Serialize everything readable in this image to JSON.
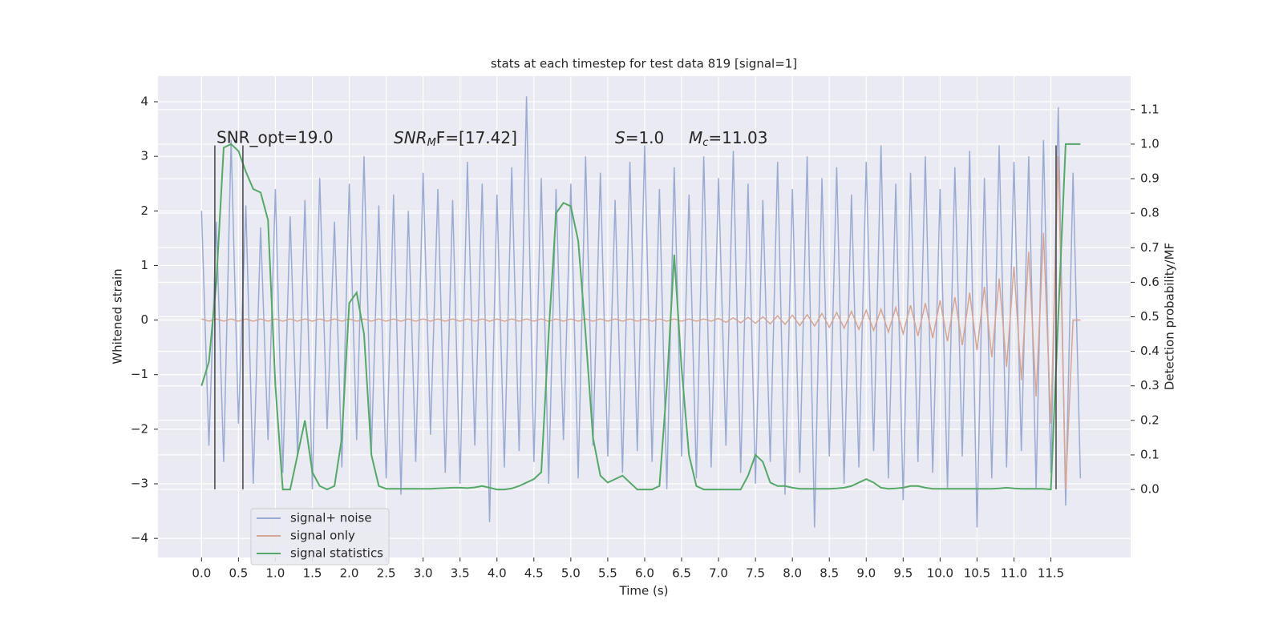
{
  "chart_data": {
    "type": "line",
    "title": "stats at each timestep for test data 819 [signal=1]",
    "xlabel": "Time (s)",
    "ylabel": "Whitened strain",
    "y2label": "Detection probability/MF",
    "annotations": {
      "snr_opt": "SNR_opt=19.0",
      "snr_mf": {
        "italic": "SNR",
        "sub": "M",
        "rest": "F=[17.42]"
      },
      "s": {
        "italic": "S",
        "rest": "=1.0"
      },
      "mc": {
        "italic": "M",
        "sub": "c",
        "rest": "=11.03"
      }
    },
    "xlim": [
      -0.59,
      12.58
    ],
    "ylim": [
      -4.35,
      4.47
    ],
    "y2lim": [
      -0.197,
      1.197
    ],
    "xticks": [
      {
        "value": 0,
        "label": "0.0"
      },
      0.5,
      {
        "value": 1,
        "label": "1.0"
      },
      1.5,
      {
        "value": 2,
        "label": "2.0"
      },
      2.5,
      {
        "value": 3,
        "label": "3.0"
      },
      3.5,
      {
        "value": 4,
        "label": "4.0"
      },
      4.5,
      {
        "value": 5,
        "label": "5.0"
      },
      5.5,
      {
        "value": 6,
        "label": "6.0"
      },
      6.5,
      {
        "value": 7,
        "label": "7.0"
      },
      7.5,
      {
        "value": 8,
        "label": "8.0"
      },
      8.5,
      {
        "value": 9,
        "label": "9.0"
      },
      9.5,
      {
        "value": 10,
        "label": "10.0"
      },
      10.5,
      {
        "value": 11,
        "label": "11.0"
      },
      11.5
    ],
    "yticks": [
      {
        "value": -4,
        "label": "−4"
      },
      {
        "value": -3,
        "label": "−3"
      },
      {
        "value": -2,
        "label": "−2"
      },
      {
        "value": -1,
        "label": "−1"
      },
      0,
      1,
      2,
      3,
      4
    ],
    "y2ticks": [
      {
        "value": 0,
        "label": "0.0"
      },
      0.1,
      0.2,
      0.3,
      0.4,
      0.5,
      0.6,
      0.7,
      0.8,
      0.9,
      {
        "value": 1,
        "label": "1.0"
      },
      1.1
    ],
    "grid": true,
    "legend": "lower left",
    "vlines": [
      0.18,
      0.56,
      11.57
    ],
    "vline_range": [
      -3.1,
      3.2
    ],
    "vline_color": "#444444",
    "x": [
      0,
      0.1,
      0.2,
      0.3,
      0.4,
      0.5,
      0.6,
      0.7,
      0.8,
      0.9,
      1,
      1.1,
      1.2,
      1.3,
      1.4,
      1.5,
      1.6,
      1.7,
      1.8,
      1.9,
      2,
      2.1,
      2.2,
      2.3,
      2.4,
      2.5,
      2.6,
      2.7,
      2.8,
      2.9,
      3,
      3.1,
      3.2,
      3.3,
      3.4,
      3.5,
      3.6,
      3.7,
      3.8,
      3.9,
      4,
      4.1,
      4.2,
      4.3,
      4.4,
      4.5,
      4.6,
      4.7,
      4.8,
      4.9,
      5,
      5.1,
      5.2,
      5.3,
      5.4,
      5.5,
      5.6,
      5.7,
      5.8,
      5.9,
      6,
      6.1,
      6.2,
      6.3,
      6.4,
      6.5,
      6.6,
      6.7,
      6.8,
      6.9,
      7,
      7.1,
      7.2,
      7.3,
      7.4,
      7.5,
      7.6,
      7.7,
      7.8,
      7.9,
      8,
      8.1,
      8.2,
      8.3,
      8.4,
      8.5,
      8.6,
      8.7,
      8.8,
      8.9,
      9,
      9.1,
      9.2,
      9.3,
      9.4,
      9.5,
      9.6,
      9.7,
      9.8,
      9.9,
      10,
      10.1,
      10.2,
      10.3,
      10.4,
      10.5,
      10.6,
      10.7,
      10.8,
      10.9,
      11,
      11.1,
      11.2,
      11.3,
      11.4,
      11.5,
      11.6,
      11.7,
      11.8,
      11.9
    ],
    "series": [
      {
        "name": "signal+ noise",
        "color": "#9aabd3",
        "values": [
          2.0,
          -2.3,
          1.8,
          -2.6,
          3.3,
          -1.9,
          2.1,
          -3.0,
          1.7,
          -2.2,
          2.4,
          -2.8,
          1.9,
          -2.5,
          2.2,
          -3.1,
          2.6,
          -2.0,
          1.8,
          -2.7,
          2.5,
          -2.2,
          3.0,
          -2.4,
          2.1,
          -2.9,
          2.3,
          -3.2,
          2.0,
          -2.6,
          2.7,
          -2.1,
          2.4,
          -2.8,
          2.2,
          -3.0,
          2.9,
          -2.3,
          2.5,
          -3.7,
          2.3,
          -2.7,
          2.8,
          -2.4,
          4.1,
          -2.6,
          2.6,
          -3.0,
          2.4,
          -2.2,
          2.5,
          -2.9,
          3.0,
          -2.3,
          2.7,
          -2.5,
          2.2,
          -2.8,
          2.9,
          -2.4,
          3.2,
          -2.6,
          2.4,
          -3.1,
          2.8,
          -2.5,
          2.3,
          -2.9,
          3.0,
          -2.7,
          2.6,
          -2.3,
          3.1,
          -2.8,
          2.5,
          -3.0,
          2.2,
          -2.6,
          2.9,
          -3.2,
          2.4,
          -2.8,
          3.0,
          -3.8,
          2.6,
          -2.5,
          2.8,
          -3.0,
          2.3,
          -2.7,
          2.9,
          -2.4,
          3.2,
          -2.9,
          2.5,
          -3.3,
          2.7,
          -2.6,
          3.0,
          -2.8,
          2.4,
          -3.1,
          2.8,
          -2.5,
          3.1,
          -3.8,
          2.6,
          -2.9,
          3.2,
          -2.7,
          2.9,
          -2.4,
          3.0,
          -3.1,
          3.3,
          -2.8,
          3.9,
          -3.4,
          2.7,
          -2.9
        ]
      },
      {
        "name": "signal only",
        "color": "#d6a593",
        "values": [
          0.02,
          -0.02,
          0.02,
          -0.02,
          0.02,
          -0.02,
          0.02,
          -0.02,
          0.02,
          -0.02,
          0.02,
          -0.02,
          0.02,
          -0.02,
          0.02,
          -0.02,
          0.02,
          -0.02,
          0.02,
          -0.02,
          0.02,
          -0.02,
          0.02,
          -0.02,
          0.02,
          -0.02,
          0.02,
          -0.02,
          0.02,
          -0.02,
          0.02,
          -0.02,
          0.02,
          -0.02,
          0.02,
          -0.02,
          0.02,
          -0.02,
          0.02,
          -0.02,
          0.02,
          -0.02,
          0.02,
          -0.02,
          0.02,
          -0.02,
          0.02,
          -0.02,
          0.02,
          -0.02,
          0.02,
          -0.02,
          0.02,
          -0.02,
          0.02,
          -0.02,
          0.02,
          -0.02,
          0.02,
          -0.02,
          0.02,
          -0.02,
          0.02,
          -0.02,
          0.02,
          -0.02,
          0.02,
          -0.02,
          0.02,
          -0.02,
          0.03,
          -0.04,
          0.04,
          -0.05,
          0.05,
          -0.06,
          0.06,
          -0.07,
          0.08,
          -0.08,
          0.09,
          -0.1,
          0.1,
          -0.11,
          0.12,
          -0.13,
          0.14,
          -0.15,
          0.16,
          -0.17,
          0.18,
          -0.19,
          0.2,
          -0.22,
          0.23,
          -0.25,
          0.27,
          -0.29,
          0.31,
          -0.33,
          0.36,
          -0.39,
          0.42,
          -0.46,
          0.5,
          -0.55,
          0.61,
          -0.68,
          0.76,
          -0.86,
          0.98,
          -1.1,
          1.25,
          -1.4,
          1.6,
          -1.9,
          3.0,
          -3.1,
          0.0,
          0.0
        ]
      },
      {
        "name": "signal statistics",
        "color": "#55a868",
        "axis": "y2",
        "values": [
          0.3,
          0.37,
          0.6,
          0.99,
          1.0,
          0.98,
          0.92,
          0.87,
          0.86,
          0.78,
          0.3,
          0.0,
          0.0,
          0.1,
          0.2,
          0.05,
          0.01,
          0.0,
          0.01,
          0.15,
          0.54,
          0.57,
          0.45,
          0.1,
          0.01,
          0.002,
          0.002,
          0.002,
          0.002,
          0.002,
          0.002,
          0.002,
          0.003,
          0.004,
          0.005,
          0.005,
          0.004,
          0.006,
          0.01,
          0.005,
          0.0,
          0.0,
          0.003,
          0.01,
          0.02,
          0.03,
          0.05,
          0.45,
          0.8,
          0.83,
          0.82,
          0.72,
          0.45,
          0.15,
          0.04,
          0.02,
          0.03,
          0.04,
          0.02,
          0.0,
          0.0,
          0.0,
          0.01,
          0.3,
          0.68,
          0.35,
          0.1,
          0.01,
          0.0,
          0.0,
          0.0,
          0.0,
          0.0,
          0.0,
          0.04,
          0.1,
          0.08,
          0.02,
          0.01,
          0.01,
          0.005,
          0.002,
          0.002,
          0.002,
          0.002,
          0.002,
          0.003,
          0.005,
          0.01,
          0.02,
          0.03,
          0.02,
          0.005,
          0.002,
          0.003,
          0.005,
          0.01,
          0.01,
          0.005,
          0.002,
          0.002,
          0.002,
          0.002,
          0.002,
          0.002,
          0.002,
          0.002,
          0.002,
          0.003,
          0.005,
          0.003,
          0.002,
          0.002,
          0.002,
          0.002,
          0.0,
          0.5,
          1.0,
          1.0,
          1.0
        ]
      }
    ]
  }
}
